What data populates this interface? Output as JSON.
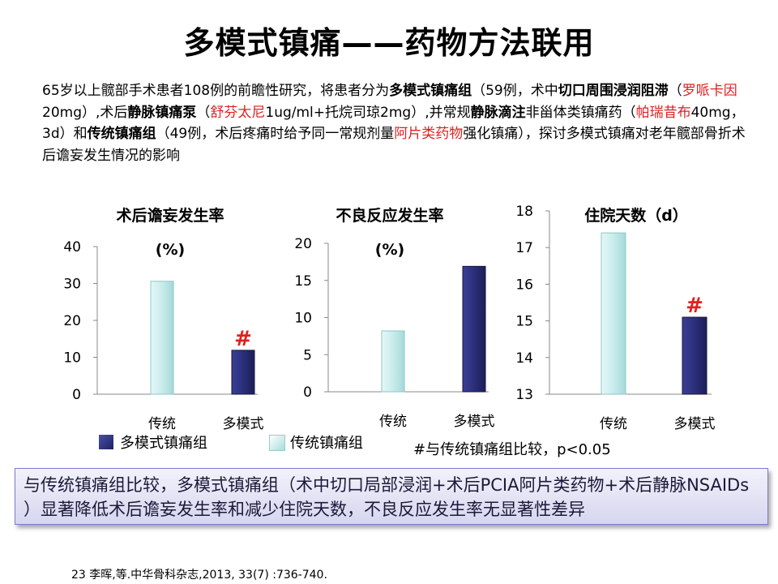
{
  "slide": {
    "title": "多模式镇痛——药物方法联用",
    "intro_segments": [
      {
        "text": "65岁以上髋部手术患者108例的前瞻性研究，将患者分为",
        "style": "normal"
      },
      {
        "text": "多模式镇痛组",
        "style": "bold"
      },
      {
        "text": "（59例，术中",
        "style": "normal"
      },
      {
        "text": "切口周围浸润阻滞",
        "style": "bold"
      },
      {
        "text": "（",
        "style": "normal"
      },
      {
        "text": "罗哌卡因",
        "style": "red"
      },
      {
        "text": "20mg）,术后",
        "style": "normal"
      },
      {
        "text": "静脉镇痛泵",
        "style": "bold"
      },
      {
        "text": "（",
        "style": "normal"
      },
      {
        "text": "舒芬太尼",
        "style": "red"
      },
      {
        "text": "1ug/ml+托烷司琼2mg）,并常规",
        "style": "normal"
      },
      {
        "text": "静脉滴注",
        "style": "bold"
      },
      {
        "text": "非甾体类镇痛药（",
        "style": "normal"
      },
      {
        "text": "帕瑞昔布",
        "style": "red"
      },
      {
        "text": "40mg，3d）和",
        "style": "normal"
      },
      {
        "text": "传统镇痛组",
        "style": "bold"
      },
      {
        "text": "（49例，术后疼痛时给予同一常规剂量",
        "style": "normal"
      },
      {
        "text": "阿片类药物",
        "style": "red"
      },
      {
        "text": "强化镇痛），探讨多模式镇痛对老年髋部骨折术后谵妄发生情况的影响",
        "style": "normal"
      }
    ],
    "legend": {
      "multimodal": "多模式镇痛组",
      "traditional": "传统镇痛组",
      "footnote": "#与传统镇痛组比较，p<0.05"
    },
    "conclusion": "与传统镇痛组比较，多模式镇痛组（术中切口局部浸润+术后PCIA阿片类药物+术后静脉NSAIDs ）显著降低术后谵妄发生率和减少住院天数，不良反应发生率无显著性差异",
    "citation": "23 李晖,等.中华骨科杂志,2013, 33(7) :736-740.",
    "colors": {
      "traditional": "#c8ecec",
      "multimodal": "#2b2f7a",
      "significance": "#e02020",
      "box_border": "#7b7bd6"
    }
  },
  "chart_data": [
    {
      "type": "bar",
      "title": "术后谵妄发生率",
      "unit": "(%)",
      "categories": [
        "传统",
        "多模式"
      ],
      "values": [
        30.6,
        11.9
      ],
      "ylim": [
        0,
        40
      ],
      "yticks": [
        0,
        10,
        20,
        30,
        40
      ],
      "marks": [
        "",
        "#"
      ]
    },
    {
      "type": "bar",
      "title": "不良反应发生率",
      "unit": "(%)",
      "categories": [
        "传统",
        "多模式"
      ],
      "values": [
        8.2,
        16.9
      ],
      "ylim": [
        0,
        20
      ],
      "yticks": [
        0,
        5,
        10,
        15,
        20
      ],
      "marks": [
        "",
        ""
      ]
    },
    {
      "type": "bar",
      "title": "住院天数（d）",
      "unit": "",
      "categories": [
        "传统",
        "多模式"
      ],
      "values": [
        17.4,
        15.1
      ],
      "ylim": [
        13,
        18
      ],
      "yticks": [
        13,
        14,
        15,
        16,
        17,
        18
      ],
      "marks": [
        "",
        "#"
      ]
    }
  ]
}
